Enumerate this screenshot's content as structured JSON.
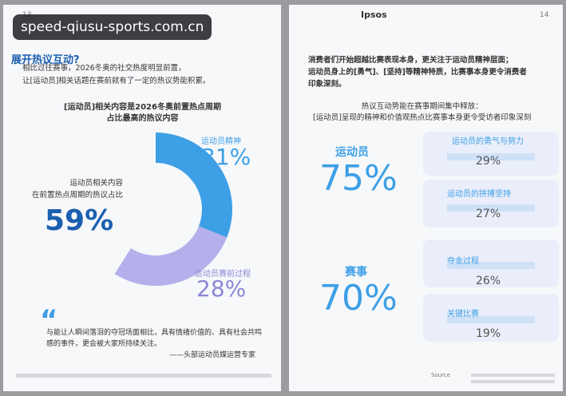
{
  "watermark": "speed-qiusu-sports.com.cn",
  "left_page": {
    "page_number": "13",
    "title": "展开热议互动?",
    "intro": [
      "相比过往赛事，2026冬奥的社交热度明显前置，",
      "让[运动员]相关话题在赛前就有了一定的热议势能积累。"
    ],
    "chart_title": [
      "[运动员]相关内容是2026冬奥前置热点周期",
      "占比最高的热议内容"
    ],
    "donut": {
      "total_label": [
        "运动员相关内容",
        "在前置热点周期的热议占比"
      ],
      "total_value": 59,
      "total_value_label": "59%",
      "segments": [
        {
          "name": "运动员精神",
          "value": 31,
          "value_label": "31%",
          "color": "#3d9fe6"
        },
        {
          "name": "运动员赛前过程",
          "value": 28,
          "value_label": "28%",
          "color": "#b4b0ec"
        }
      ]
    },
    "quote": [
      "与能让人瞬间落泪的夺冠场面相比，具有情绪价值的、具有社会共鸣",
      "感的事件，更会被大家所持续关注。"
    ],
    "quote_source": "——头部运动员媒运营专家"
  },
  "right_page": {
    "brand": "Ipsos",
    "page_number": "14",
    "intro": [
      "消费者们开始超越比赛表现本身，更关注于运动员精神层面；",
      "运动员身上的[勇气]、[坚持]等精神特质，比赛事本身更令消费者",
      "印象深刻。"
    ],
    "heading": [
      "热议互动势能在赛事期间集中释放：",
      "[运动员]呈现的精神和价值观热点比赛事本身更令受访者印象深刻"
    ],
    "groups": [
      {
        "name": "运动员",
        "value_label": "75%",
        "items": [
          {
            "name": "运动员的勇气与努力",
            "value_label": "29%"
          },
          {
            "name": "运动员的拼搏坚持",
            "value_label": "27%"
          }
        ]
      },
      {
        "name": "赛事",
        "value_label": "70%",
        "items": [
          {
            "name": "夺金过程",
            "value_label": "26%"
          },
          {
            "name": "关键比赛",
            "value_label": "19%"
          }
        ]
      }
    ],
    "source": "Source"
  }
}
